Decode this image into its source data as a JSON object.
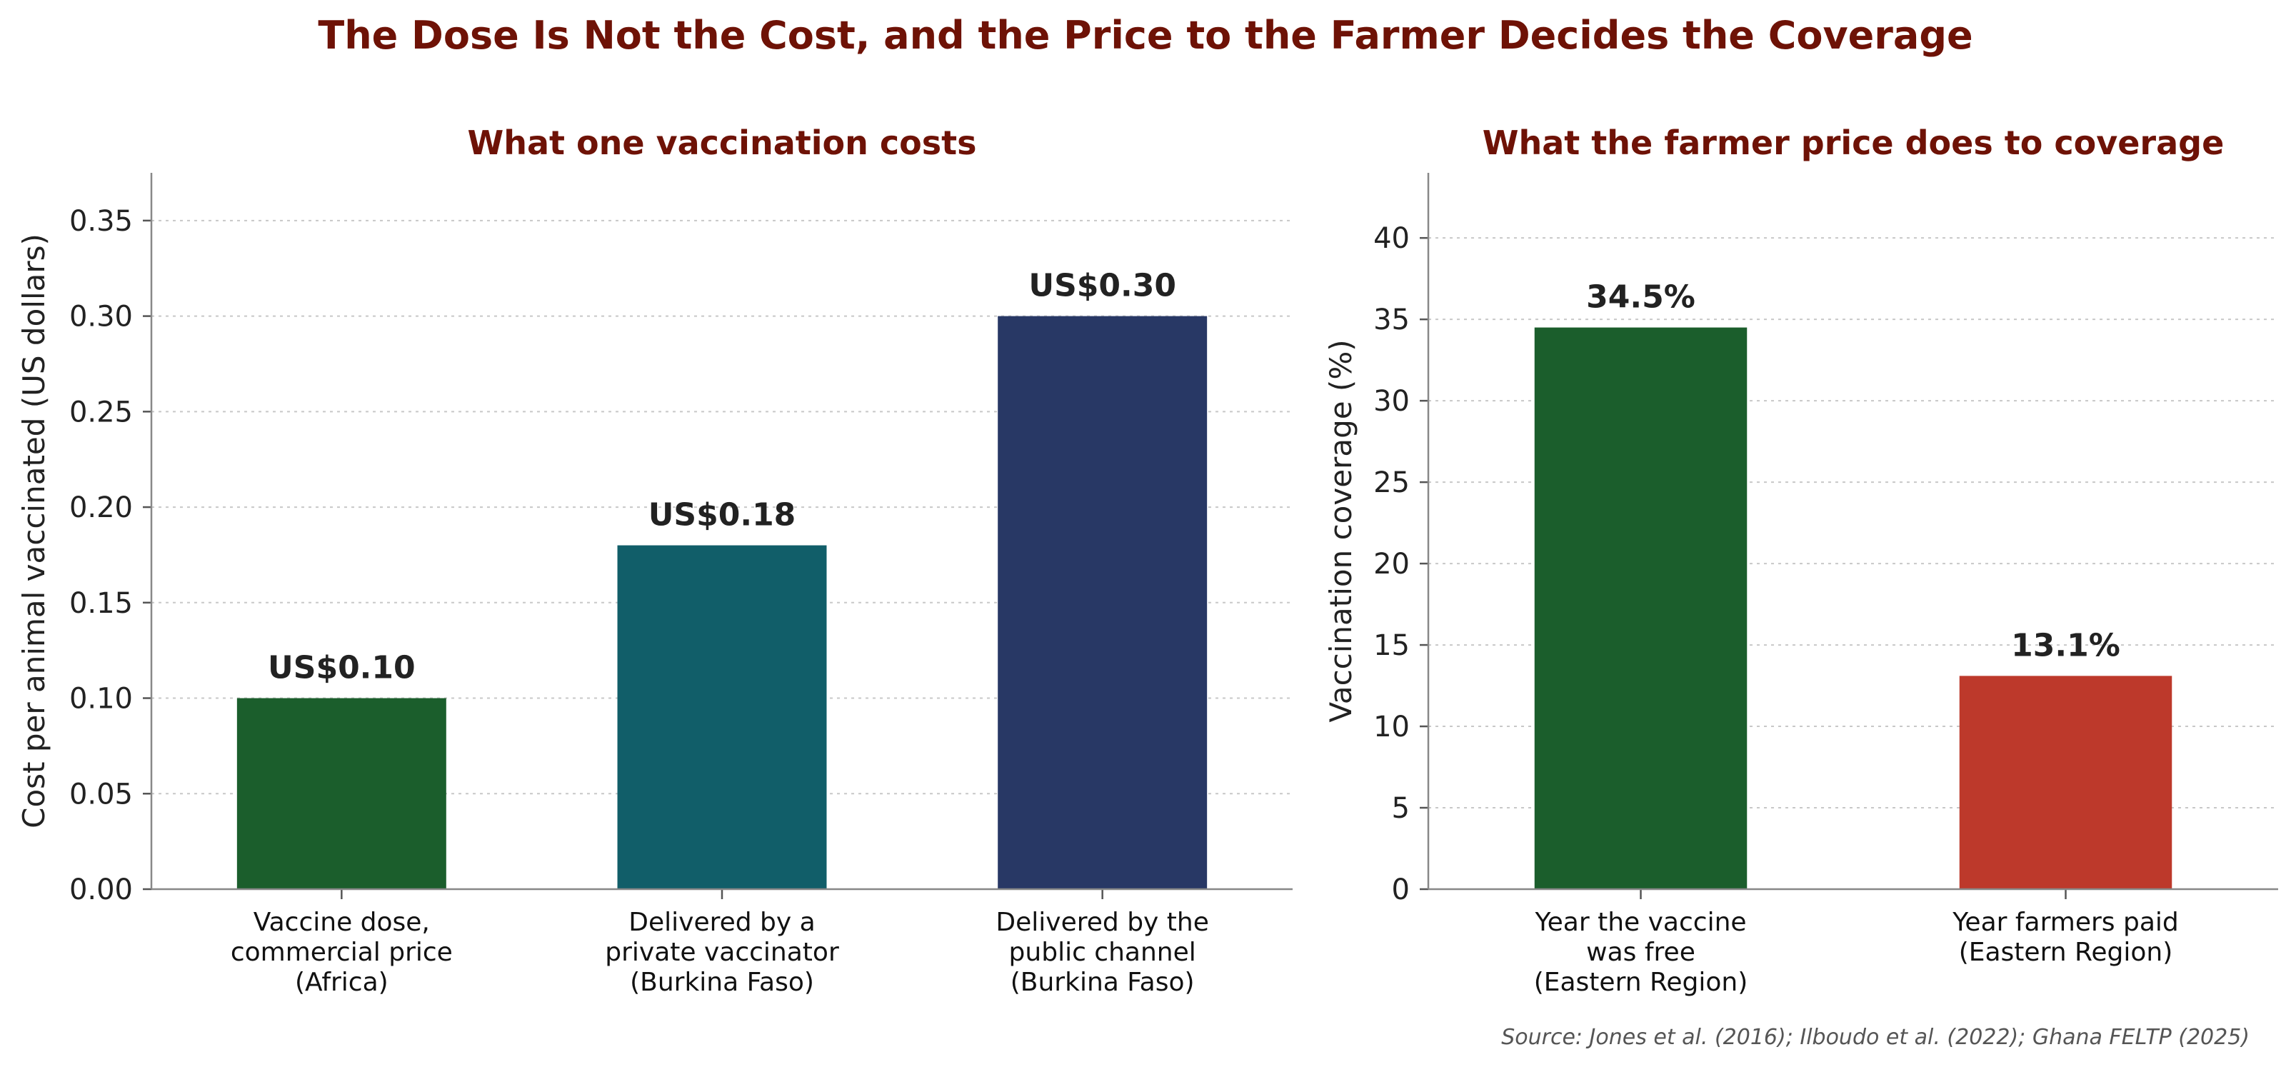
{
  "title": "The Dose Is Not the Cost, and the Price to the Farmer Decides the Coverage",
  "source": "Source: Jones et al. (2016); Ilboudo et al. (2022); Ghana FELTP (2025)",
  "chart_data": [
    {
      "type": "bar",
      "title": "What one vaccination costs",
      "ylabel": "Cost per animal vaccinated (US dollars)",
      "xlabel": "",
      "ylim": [
        0,
        0.375
      ],
      "yticks": [
        0.0,
        0.05,
        0.1,
        0.15,
        0.2,
        0.25,
        0.3,
        0.35
      ],
      "ytick_labels": [
        "0.00",
        "0.05",
        "0.10",
        "0.15",
        "0.20",
        "0.25",
        "0.30",
        "0.35"
      ],
      "grid": "y-dotted",
      "categories": [
        [
          "Vaccine dose,",
          "commercial price",
          "(Africa)"
        ],
        [
          "Delivered by a",
          "private vaccinator",
          "(Burkina Faso)"
        ],
        [
          "Delivered by the",
          "public channel",
          "(Burkina Faso)"
        ]
      ],
      "values": [
        0.1,
        0.18,
        0.3
      ],
      "data_labels": [
        "US$0.10",
        "US$0.18",
        "US$0.30"
      ],
      "colors": [
        "#1b5e2c",
        "#115e69",
        "#283865"
      ]
    },
    {
      "type": "bar",
      "title": "What the farmer price does to coverage",
      "ylabel": "Vaccination coverage (%)",
      "xlabel": "",
      "ylim": [
        0,
        44
      ],
      "yticks": [
        0,
        5,
        10,
        15,
        20,
        25,
        30,
        35,
        40
      ],
      "ytick_labels": [
        "0",
        "5",
        "10",
        "15",
        "20",
        "25",
        "30",
        "35",
        "40"
      ],
      "grid": "y-dotted",
      "categories": [
        [
          "Year the vaccine",
          "was free",
          "(Eastern Region)"
        ],
        [
          "Year farmers paid",
          "(Eastern Region)"
        ]
      ],
      "values": [
        34.5,
        13.1
      ],
      "data_labels": [
        "34.5%",
        "13.1%"
      ],
      "colors": [
        "#1b5e2c",
        "#bd392b"
      ]
    }
  ]
}
